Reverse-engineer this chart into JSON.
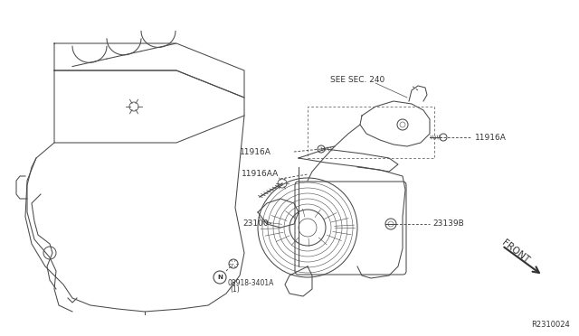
{
  "bg_color": "#ffffff",
  "line_color": "#4a4a4a",
  "text_color": "#333333",
  "diagram_id": "R2310024",
  "labels": {
    "see_sec": "SEE SEC. 240",
    "11916A_left": "11916A",
    "11916A_right": "11916A",
    "11916AA": "11916AA",
    "23100": "23100",
    "23139B": "23139B",
    "nut_label": "08918-3401A",
    "nut_qty": "(1)",
    "N_label": "N",
    "front_label": "FRONT"
  },
  "font_size_label": 6.5,
  "font_size_small": 5.5,
  "font_size_diagram_id": 6,
  "lw": 0.75
}
